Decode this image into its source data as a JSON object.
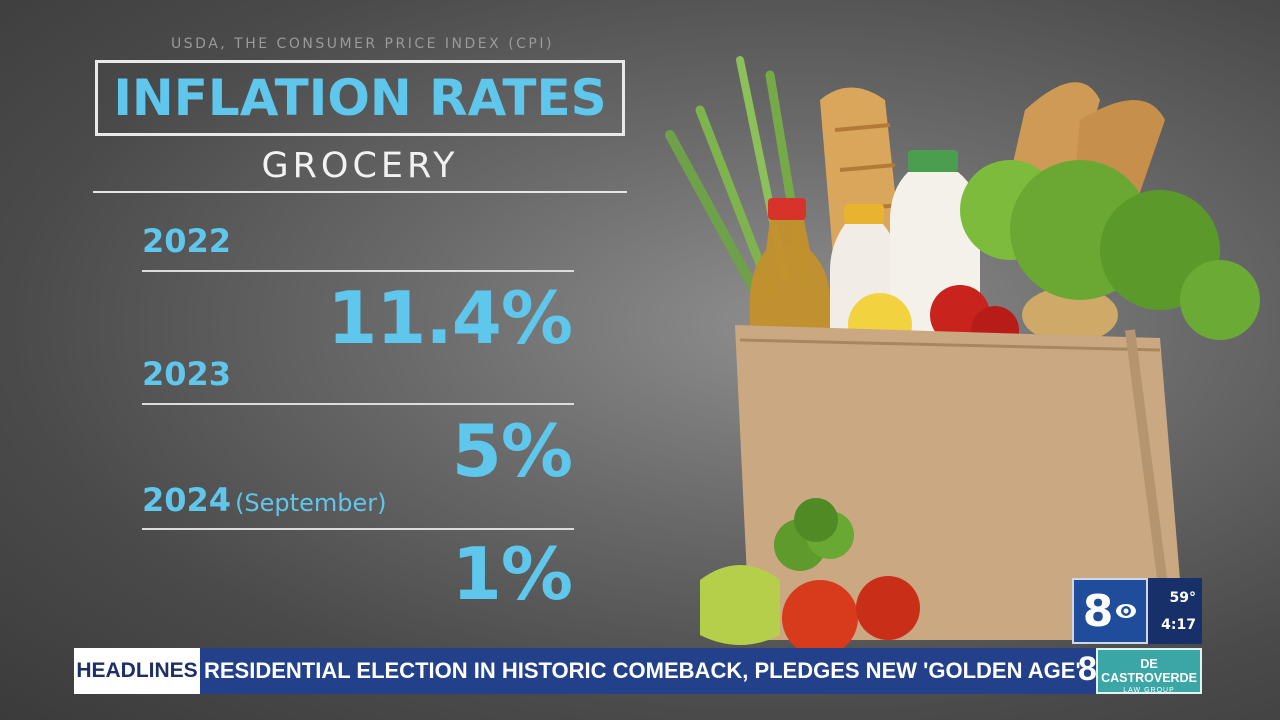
{
  "graphic": {
    "source": "USDA, THE CONSUMER PRICE INDEX (CPI)",
    "title": "INFLATION RATES",
    "subtitle": "GROCERY",
    "rows": [
      {
        "year": "2022",
        "note": "",
        "rate": "11.4%"
      },
      {
        "year": "2023",
        "note": "",
        "rate": "5%"
      },
      {
        "year": "2024",
        "note": "(September)",
        "rate": "1%"
      }
    ]
  },
  "station": {
    "logo": "8",
    "logo_icon": "cbs-eye-icon",
    "temperature": "59°",
    "time": "4:17"
  },
  "ticker": {
    "label": "HEADLINES",
    "text": "RESIDENTIAL ELECTION IN HISTORIC COMEBACK, PLEDGES NEW 'GOLDEN AGE'",
    "mark": "8",
    "sponsor": "DE CASTROVERDE",
    "sponsor_sub": "LAW GROUP"
  },
  "colors": {
    "accent": "#5fc6ec",
    "ticker": "#23408a",
    "sponsor": "#3aa6a6"
  }
}
